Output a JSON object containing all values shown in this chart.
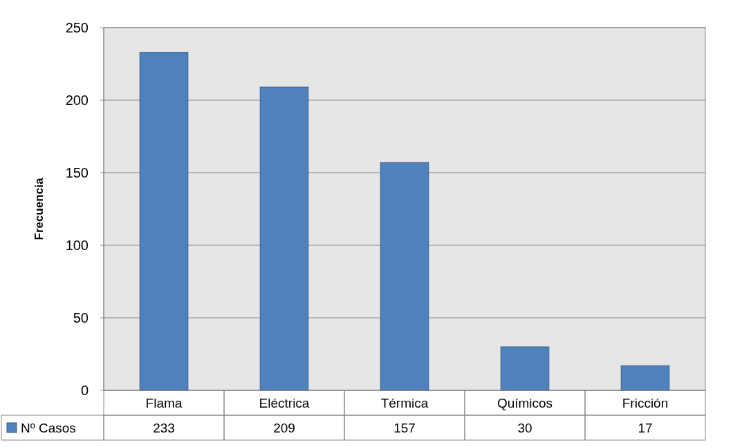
{
  "chart_data": {
    "type": "bar",
    "ylabel": "Frecuencia",
    "categories": [
      "Flama",
      "Eléctrica",
      "Térmica",
      "Químicos",
      "Fricción"
    ],
    "series": [
      {
        "name": "Nº Casos",
        "color": "#4f81bd",
        "values": [
          233,
          209,
          157,
          30,
          17
        ]
      }
    ],
    "ylim": [
      0,
      250
    ],
    "yticks": [
      0,
      50,
      100,
      150,
      200,
      250
    ],
    "grid": "y",
    "legend": "bottom",
    "data_labels": true
  }
}
